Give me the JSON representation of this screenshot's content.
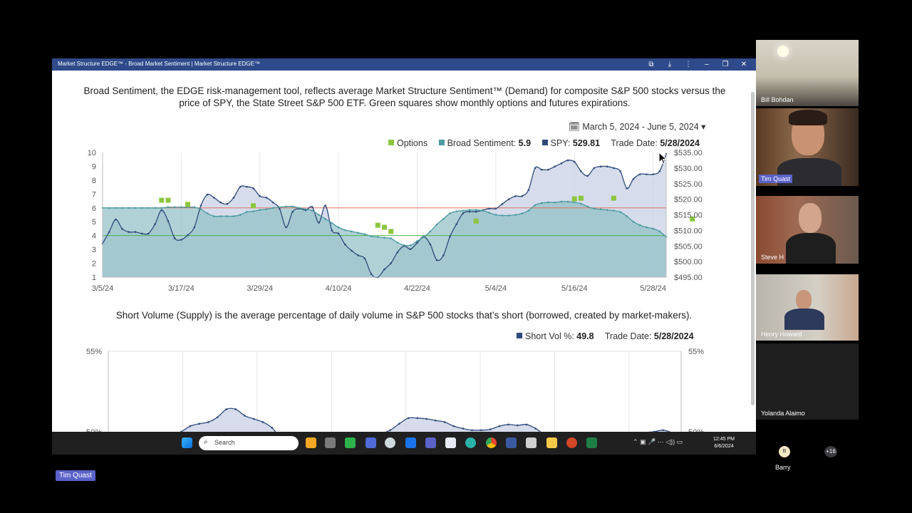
{
  "window": {
    "title": "Market Structure EDGE™ - Broad Market Sentiment | Market Structure EDGE™"
  },
  "page": {
    "description": "Broad Sentiment, the EDGE risk-management tool, reflects average Market Structure Sentiment™ (Demand) for composite S&P 500 stocks versus the price of SPY, the State Street S&P 500 ETF. Green squares show monthly options and futures expirations.",
    "date_range": "March 5, 2024 - June 5, 2024",
    "legend": {
      "options_label": "Options",
      "sentiment_label": "Broad Sentiment:",
      "sentiment_value": "5.9",
      "spy_label": "SPY:",
      "spy_value": "529.81",
      "trade_date_label": "Trade Date:",
      "trade_date_value": "5/28/2024"
    },
    "short_description": "Short Volume (Supply) is the average percentage of daily volume in S&P 500 stocks that’s short (borrowed, created by market-makers).",
    "short_legend": {
      "label": "Short Vol %:",
      "value": "49.8",
      "trade_date_label": "Trade Date:",
      "trade_date_value": "5/28/2024"
    }
  },
  "colors": {
    "sentiment": "#4a9aa0",
    "sentiment_fill": "#8fbfc4",
    "spy": "#2e4a7a",
    "spy_fill": "#c8d0e6",
    "options": "#8cc63f",
    "upper_line": "#e07060",
    "lower_line": "#4caf50",
    "titlebar": "#2e4a8a"
  },
  "chart_data": [
    {
      "type": "line",
      "title": "",
      "x_ticks": [
        "3/5/24",
        "3/17/24",
        "3/29/24",
        "4/10/24",
        "4/22/24",
        "5/4/24",
        "5/16/24",
        "5/28/24"
      ],
      "y_left_ticks": [
        "10",
        "9",
        "8",
        "7",
        "6",
        "5",
        "4",
        "3",
        "2",
        "1"
      ],
      "y_right_ticks": [
        "$535.00",
        "$530.00",
        "$525.00",
        "$520.00",
        "$515.00",
        "$510.00",
        "$505.00",
        "$500.00",
        "$495.00"
      ],
      "ylim_left": [
        1,
        10
      ],
      "ylim_right": [
        495,
        535
      ],
      "reference_lines": [
        6,
        4
      ],
      "series": [
        {
          "name": "Broad Sentiment",
          "axis": "left",
          "values": [
            6.0,
            6.0,
            6.0,
            6.0,
            6.0,
            6.0,
            6.0,
            6.0,
            6.0,
            6.0,
            6.05,
            6.05,
            6.05,
            6.05,
            6.05,
            5.9,
            5.6,
            5.4,
            5.4,
            5.4,
            5.4,
            5.5,
            5.7,
            5.75,
            5.85,
            5.9,
            6.0,
            6.05,
            6.1,
            6.1,
            6.0,
            5.9,
            5.8,
            5.5,
            5.2,
            4.9,
            4.6,
            4.4,
            4.3,
            4.2,
            4.1,
            3.95,
            3.9,
            3.85,
            3.8,
            3.5,
            3.3,
            3.3,
            3.6,
            3.9,
            4.3,
            4.8,
            5.2,
            5.6,
            5.75,
            5.8,
            5.85,
            5.85,
            5.8,
            5.65,
            5.5,
            5.45,
            5.45,
            5.5,
            5.6,
            5.8,
            6.2,
            6.35,
            6.4,
            6.4,
            6.45,
            6.45,
            6.4,
            6.3,
            6.1,
            5.95,
            5.9,
            5.85,
            5.8,
            5.7,
            5.4,
            5.0,
            4.75,
            4.6,
            4.5,
            4.3,
            3.9
          ]
        },
        {
          "name": "SPY",
          "axis": "right",
          "values": [
            505.8,
            509.5,
            513.5,
            510.5,
            509.5,
            509.5,
            509.0,
            509.0,
            512.0,
            516.5,
            513.0,
            507.5,
            507.0,
            508.5,
            511.0,
            518.0,
            521.5,
            520.5,
            519.0,
            518.5,
            520.5,
            524.0,
            524.0,
            523.5,
            521.0,
            520.5,
            519.0,
            517.0,
            511.0,
            516.0,
            517.0,
            516.5,
            517.5,
            512.5,
            518.0,
            510.0,
            509.0,
            505.5,
            503.5,
            502.0,
            501.0,
            496.0,
            495.0,
            497.5,
            499.5,
            503.0,
            505.0,
            504.0,
            506.0,
            508.0,
            505.5,
            500.5,
            502.0,
            508.0,
            512.0,
            515.5,
            516.0,
            516.0,
            516.5,
            517.0,
            517.0,
            518.5,
            520.0,
            521.0,
            521.0,
            523.0,
            530.0,
            529.5,
            529.5,
            530.5,
            531.5,
            532.5,
            532.0,
            529.0,
            527.5,
            530.0,
            530.5,
            530.5,
            530.0,
            529.0,
            523.5,
            526.5,
            528.0,
            528.0,
            528.0,
            529.0,
            534.5
          ]
        }
      ],
      "options_markers": [
        {
          "x": "3/14/24",
          "y": 6.55
        },
        {
          "x": "3/15/24",
          "y": 6.55
        },
        {
          "x": "3/18/24",
          "y": 6.25
        },
        {
          "x": "3/28/24",
          "y": 6.15
        },
        {
          "x": "4/16/24",
          "y": 4.75
        },
        {
          "x": "4/17/24",
          "y": 4.6
        },
        {
          "x": "4/18/24",
          "y": 4.3
        },
        {
          "x": "5/1/24",
          "y": 5.05
        },
        {
          "x": "5/16/24",
          "y": 6.65
        },
        {
          "x": "5/17/24",
          "y": 6.7
        },
        {
          "x": "5/22/24",
          "y": 6.7
        },
        {
          "x": "6/3/24",
          "y": 5.2
        }
      ]
    },
    {
      "type": "line",
      "title": "",
      "y_ticks": [
        "55%",
        "50%"
      ],
      "ylim": [
        45,
        55
      ],
      "series": [
        {
          "name": "Short Vol %",
          "values": [
            49.3,
            49.35,
            49.35,
            49.35,
            49.35,
            49.4,
            49.6,
            49.8,
            50.0,
            50.35,
            50.5,
            50.6,
            50.9,
            51.4,
            51.4,
            51.0,
            50.8,
            50.6,
            50.25,
            49.6,
            49.3,
            49.3,
            49.3,
            49.25,
            49.2,
            49.3,
            49.4,
            49.55,
            49.8,
            49.85,
            49.9,
            50.1,
            50.5,
            50.85,
            50.85,
            50.8,
            50.7,
            50.6,
            50.35,
            50.2,
            50.1,
            50.1,
            50.15,
            50.35,
            50.45,
            50.4,
            50.45,
            50.2,
            49.8,
            49.45,
            49.3,
            49.2,
            48.8,
            48.7,
            49.0,
            49.5,
            49.5,
            49.6,
            49.75,
            49.95,
            50.0,
            50.1,
            49.95,
            49.8
          ]
        }
      ]
    }
  ],
  "taskbar": {
    "search_placeholder": "Search",
    "time": "12:45 PM",
    "date": "6/6/2024"
  },
  "participants": [
    {
      "name": "Bill Bohdan"
    },
    {
      "name": "Tim Quast"
    },
    {
      "name": "Steve H"
    },
    {
      "name": "Henry Howard"
    },
    {
      "name": "Yolanda Alaimo"
    },
    {
      "name": "Barry",
      "initial": "B"
    }
  ],
  "more_participants": "+16",
  "presenter_label": "Tim Quast"
}
